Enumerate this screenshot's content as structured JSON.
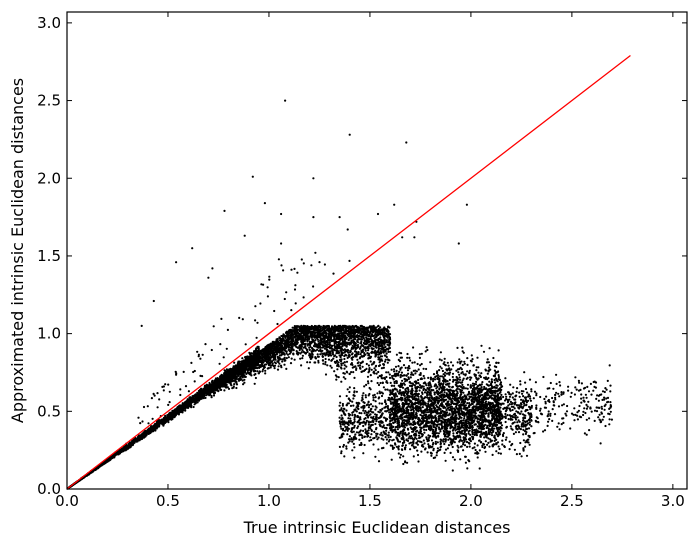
{
  "chart_data": {
    "type": "scatter",
    "title": "",
    "xlabel": "True intrinsic Euclidean distances",
    "ylabel": "Approximated intrinsic Euclidean distances",
    "xlim": [
      0.0,
      3.07
    ],
    "ylim": [
      0.0,
      3.07
    ],
    "x_ticks": [
      "0.0",
      "0.5",
      "1.0",
      "1.5",
      "2.0",
      "2.5",
      "3.0"
    ],
    "y_ticks": [
      "0.0",
      "0.5",
      "1.0",
      "1.5",
      "2.0",
      "2.5",
      "3.0"
    ],
    "grid": false,
    "legend": "none",
    "colors": {
      "points": "#000000",
      "reference_line": "#ff0000"
    },
    "reference_line": {
      "x": [
        0.0,
        2.79
      ],
      "y": [
        0.0,
        2.79
      ]
    },
    "outliers": [
      {
        "x": 1.08,
        "y": 2.5
      },
      {
        "x": 1.4,
        "y": 2.28
      },
      {
        "x": 1.68,
        "y": 2.23
      },
      {
        "x": 0.92,
        "y": 2.01
      },
      {
        "x": 1.22,
        "y": 2.0
      },
      {
        "x": 0.98,
        "y": 1.84
      },
      {
        "x": 1.98,
        "y": 1.83
      },
      {
        "x": 0.78,
        "y": 1.79
      },
      {
        "x": 1.06,
        "y": 1.77
      },
      {
        "x": 1.22,
        "y": 1.75
      },
      {
        "x": 1.35,
        "y": 1.75
      },
      {
        "x": 1.54,
        "y": 1.77
      },
      {
        "x": 1.62,
        "y": 1.83
      },
      {
        "x": 1.73,
        "y": 1.72
      },
      {
        "x": 1.39,
        "y": 1.67
      },
      {
        "x": 0.88,
        "y": 1.63
      },
      {
        "x": 1.66,
        "y": 1.62
      },
      {
        "x": 0.62,
        "y": 1.55
      },
      {
        "x": 0.54,
        "y": 1.46
      },
      {
        "x": 0.72,
        "y": 1.42
      },
      {
        "x": 1.21,
        "y": 1.44
      },
      {
        "x": 1.06,
        "y": 1.58
      },
      {
        "x": 1.94,
        "y": 1.58
      },
      {
        "x": 0.7,
        "y": 1.36
      },
      {
        "x": 0.43,
        "y": 1.21
      },
      {
        "x": 0.37,
        "y": 1.05
      },
      {
        "x": 1.23,
        "y": 1.52
      },
      {
        "x": 1.72,
        "y": 1.62
      }
    ]
  }
}
